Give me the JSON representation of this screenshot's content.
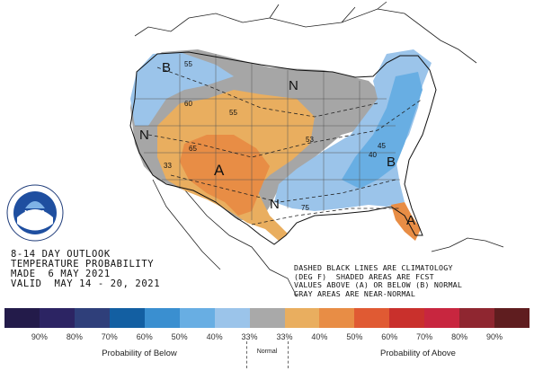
{
  "title": {
    "line1": "8-14 DAY OUTLOOK",
    "line2": "TEMPERATURE PROBABILITY",
    "line3": "MADE  6 MAY 2021",
    "line4": "VALID  MAY 14 - 20, 2021"
  },
  "note": {
    "line1": "DASHED BLACK LINES ARE CLIMATOLOGY",
    "line2": "(DEG F)  SHADED AREAS ARE FCST",
    "line3": "VALUES ABOVE (A) OR BELOW (B) NORMAL",
    "line4": "GRAY AREAS ARE NEAR-NORMAL"
  },
  "map_labels": {
    "b_northwest": "B",
    "b_southeast": "B",
    "n_north_central": "N",
    "n_west": "N",
    "n_south_texas": "N",
    "a_southwest": "A",
    "a_florida": "A",
    "c55_nw": "55",
    "c55_center": "55",
    "c60": "60",
    "c65": "65",
    "c33": "33",
    "c53": "53",
    "c40": "40",
    "c45": "45",
    "c75": "75"
  },
  "legend": {
    "colors": [
      "#231b4a",
      "#2c2463",
      "#2f3f7a",
      "#135fa2",
      "#3a8fd0",
      "#68aee3",
      "#9bc4ea",
      "#a9a9a9",
      "#e9ae5f",
      "#e88d45",
      "#e05a33",
      "#c9302c",
      "#c8263f",
      "#8f2630",
      "#5f1d1f"
    ],
    "ticks": [
      "90%",
      "80%",
      "70%",
      "60%",
      "50%",
      "40%",
      "33%",
      "33%",
      "40%",
      "50%",
      "60%",
      "70%",
      "80%",
      "90%"
    ],
    "below_label": "Probability of Below",
    "normal_label": "Normal",
    "above_label": "Probability of Above"
  },
  "map_colors": {
    "gray": "#a6a6a6",
    "light_blue": "#9bc4ea",
    "mid_blue": "#68aee3",
    "light_orange": "#e9ae5f",
    "dark_orange": "#e88d45"
  },
  "logo": {
    "text": "NOAA"
  }
}
